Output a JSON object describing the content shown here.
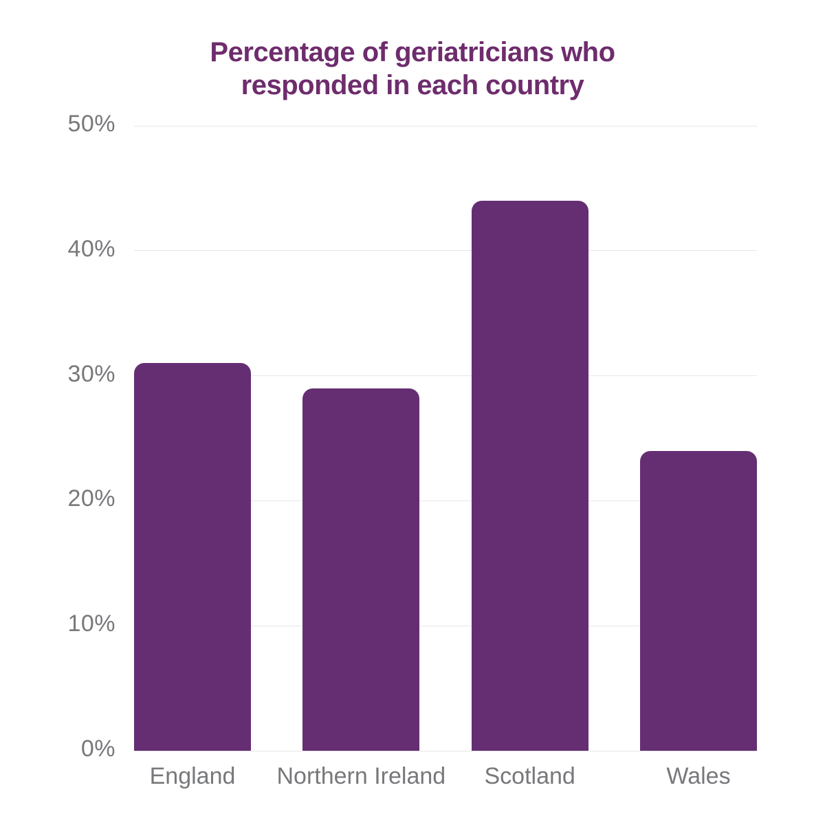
{
  "chart_data": {
    "type": "bar",
    "title": "Percentage of geriatricians who responded in each country",
    "categories": [
      "England",
      "Northern Ireland",
      "Scotland",
      "Wales"
    ],
    "values": [
      31,
      29,
      44,
      24
    ],
    "xlabel": "",
    "ylabel": "",
    "ylim": [
      0,
      50
    ],
    "yticks": [
      0,
      10,
      20,
      30,
      40,
      50
    ],
    "ytick_suffix": "%",
    "grid": true,
    "legend": "none",
    "colors": {
      "bar": "#652e72",
      "title": "#6e2c6d",
      "axis_text": "#77787b",
      "gridline": "#e6e6e8"
    }
  }
}
